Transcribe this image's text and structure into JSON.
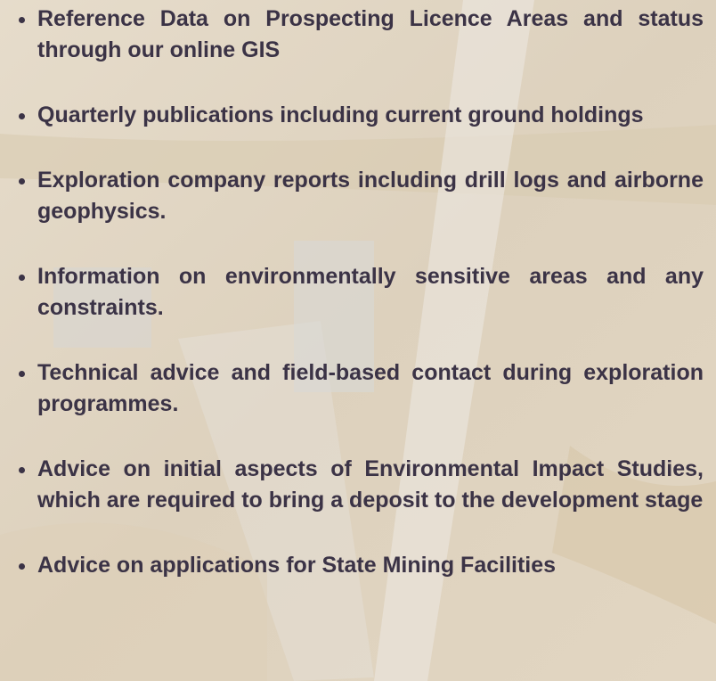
{
  "items": [
    "Reference Data on Prospecting Licence Areas and status through our online GIS",
    "Quarterly publications including current ground holdings",
    "Exploration company reports including drill logs and airborne geophysics.",
    "Information on environmentally sensitive areas and any constraints.",
    "Technical advice and field-based contact during exploration programmes.",
    "Advice on initial aspects of Environmental Impact Studies, which are required to bring a deposit to the development stage",
    "Advice on applications for State Mining Facilities"
  ]
}
